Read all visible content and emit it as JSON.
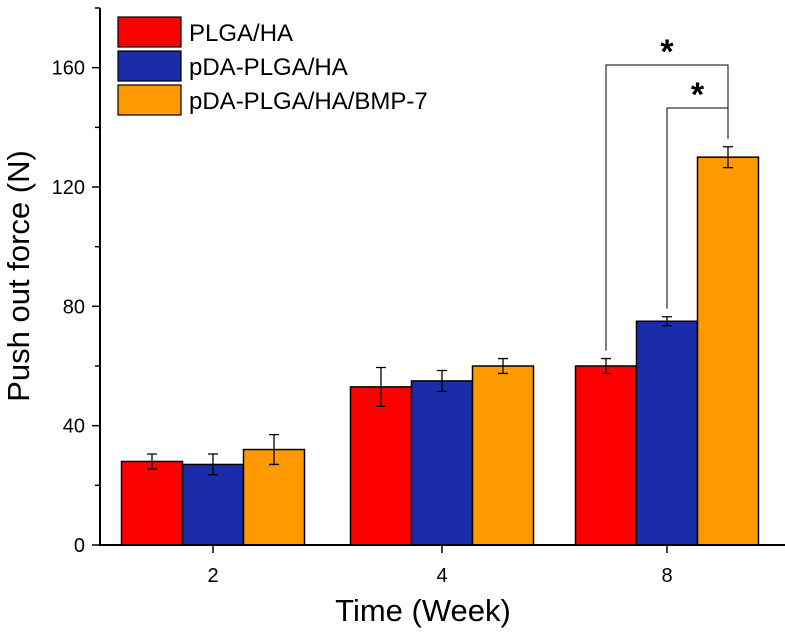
{
  "chart_data": {
    "type": "bar",
    "title": "",
    "xlabel": "Time (Week)",
    "ylabel": "Push out force (N)",
    "categories": [
      "2",
      "4",
      "8"
    ],
    "ylim": [
      0,
      180
    ],
    "yticks": [
      0,
      40,
      80,
      120,
      160
    ],
    "series": [
      {
        "name": "PLGA/HA",
        "color": "#ff0000",
        "values": [
          28,
          53,
          60
        ],
        "errors": [
          2.5,
          6.5,
          2.5
        ]
      },
      {
        "name": "pDA-PLGA/HA",
        "color": "#1a2ca8",
        "values": [
          27,
          55,
          75
        ],
        "errors": [
          3.5,
          3.5,
          1.5
        ]
      },
      {
        "name": "pDA-PLGA/HA/BMP-7",
        "color": "#ff9900",
        "values": [
          32,
          60,
          130
        ],
        "errors": [
          5,
          2.5,
          3.5
        ]
      }
    ],
    "legend_position": "top-left",
    "annotations": [
      {
        "text": "*",
        "from_series": 0,
        "to_series": 2,
        "category": "8"
      },
      {
        "text": "*",
        "from_series": 1,
        "to_series": 2,
        "category": "8"
      }
    ]
  }
}
